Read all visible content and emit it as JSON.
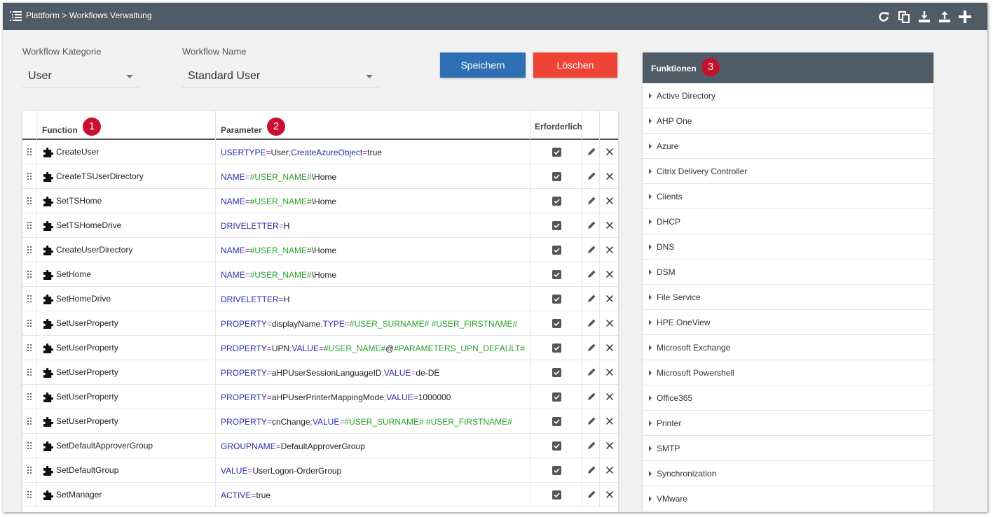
{
  "header": {
    "breadcrumb": "Plattform > Workflows Verwaltung",
    "toolbar_icons": [
      "refresh-icon",
      "copy-icon",
      "download-icon",
      "upload-icon",
      "plus-icon"
    ]
  },
  "form": {
    "category_label": "Workflow Kategorie",
    "category_value": "User",
    "name_label": "Workflow Name",
    "name_value": "Standard User"
  },
  "buttons": {
    "save": "Speichern",
    "delete": "Löschen"
  },
  "table": {
    "columns": {
      "function": "Function",
      "function_badge": "1",
      "parameter": "Parameter",
      "parameter_badge": "2",
      "required": "Erforderlich"
    },
    "rows": [
      {
        "function": "CreateUser",
        "param": [
          [
            "k",
            "USERTYPE"
          ],
          [
            "eq",
            "="
          ],
          [
            "v",
            "User"
          ],
          [
            "sc",
            ";"
          ],
          [
            "k",
            "CreateAzureObject"
          ],
          [
            "eq",
            "="
          ],
          [
            "v",
            "true"
          ]
        ],
        "required": true
      },
      {
        "function": "CreateTSUserDirectory",
        "param": [
          [
            "k",
            "NAME"
          ],
          [
            "eq",
            "="
          ],
          [
            "vg",
            "#USER_NAME#"
          ],
          [
            "v",
            "\\Home"
          ]
        ],
        "required": true
      },
      {
        "function": "SetTSHome",
        "param": [
          [
            "k",
            "NAME"
          ],
          [
            "eq",
            "="
          ],
          [
            "vg",
            "#USER_NAME#"
          ],
          [
            "v",
            "\\Home"
          ]
        ],
        "required": true
      },
      {
        "function": "SetTSHomeDrive",
        "param": [
          [
            "k",
            "DRIVELETTER"
          ],
          [
            "eq",
            "="
          ],
          [
            "v",
            "H"
          ]
        ],
        "required": true
      },
      {
        "function": "CreateUserDirectory",
        "param": [
          [
            "k",
            "NAME"
          ],
          [
            "eq",
            "="
          ],
          [
            "vg",
            "#USER_NAME#"
          ],
          [
            "v",
            "\\Home"
          ]
        ],
        "required": true
      },
      {
        "function": "SetHome",
        "param": [
          [
            "k",
            "NAME"
          ],
          [
            "eq",
            "="
          ],
          [
            "vg",
            "#USER_NAME#"
          ],
          [
            "v",
            "\\Home"
          ]
        ],
        "required": true
      },
      {
        "function": "SetHomeDrive",
        "param": [
          [
            "k",
            "DRIVELETTER"
          ],
          [
            "eq",
            "="
          ],
          [
            "v",
            "H"
          ]
        ],
        "required": true
      },
      {
        "function": "SetUserProperty",
        "param": [
          [
            "k",
            "PROPERTY"
          ],
          [
            "eq",
            "="
          ],
          [
            "v",
            "displayName"
          ],
          [
            "sc",
            ";"
          ],
          [
            "k",
            "TYPE"
          ],
          [
            "eq",
            "="
          ],
          [
            "vg",
            "#USER_SURNAME# #USER_FIRSTNAME#"
          ]
        ],
        "required": true
      },
      {
        "function": "SetUserProperty",
        "param": [
          [
            "k",
            "PROPERTY"
          ],
          [
            "eq",
            "="
          ],
          [
            "v",
            "UPN"
          ],
          [
            "sc",
            ";"
          ],
          [
            "k",
            "VALUE"
          ],
          [
            "eq",
            "="
          ],
          [
            "vg",
            "#USER_NAME#"
          ],
          [
            "v",
            "@"
          ],
          [
            "vg",
            "#PARAMETERS_UPN_DEFAULT#"
          ]
        ],
        "required": true
      },
      {
        "function": "SetUserProperty",
        "param": [
          [
            "k",
            "PROPERTY"
          ],
          [
            "eq",
            "="
          ],
          [
            "v",
            "aHPUserSessionLanguageID"
          ],
          [
            "sc",
            ";"
          ],
          [
            "k",
            "VALUE"
          ],
          [
            "eq",
            "="
          ],
          [
            "v",
            "de-DE"
          ]
        ],
        "required": true
      },
      {
        "function": "SetUserProperty",
        "param": [
          [
            "k",
            "PROPERTY"
          ],
          [
            "eq",
            "="
          ],
          [
            "v",
            "aHPUserPrinterMappingMode"
          ],
          [
            "sc",
            ";"
          ],
          [
            "k",
            "VALUE"
          ],
          [
            "eq",
            "="
          ],
          [
            "v",
            "1000000"
          ]
        ],
        "required": true
      },
      {
        "function": "SetUserProperty",
        "param": [
          [
            "k",
            "PROPERTY"
          ],
          [
            "eq",
            "="
          ],
          [
            "v",
            "cnChange"
          ],
          [
            "sc",
            ";"
          ],
          [
            "k",
            "VALUE"
          ],
          [
            "eq",
            "="
          ],
          [
            "vg",
            "#USER_SURNAME# #USER_FIRSTNAME#"
          ]
        ],
        "required": true
      },
      {
        "function": "SetDefaultApproverGroup",
        "param": [
          [
            "k",
            "GROUPNAME"
          ],
          [
            "eq",
            "="
          ],
          [
            "v",
            "DefaultApproverGroup"
          ]
        ],
        "required": true
      },
      {
        "function": "SetDefaultGroup",
        "param": [
          [
            "k",
            "VALUE"
          ],
          [
            "eq",
            "="
          ],
          [
            "v",
            "UserLogon-OrderGroup"
          ]
        ],
        "required": true
      },
      {
        "function": "SetManager",
        "param": [
          [
            "k",
            "ACTIVE"
          ],
          [
            "eq",
            "="
          ],
          [
            "v",
            "true"
          ]
        ],
        "required": true
      }
    ]
  },
  "functions_panel": {
    "title": "Funktionen",
    "badge": "3",
    "items": [
      "Active Directory",
      "AHP One",
      "Azure",
      "Citrix Delivery Controller",
      "Clients",
      "DHCP",
      "DNS",
      "DSM",
      "File Service",
      "HPE OneView",
      "Microsoft Exchange",
      "Microsoft Powershell",
      "Office365",
      "Printer",
      "SMTP",
      "Synchronization",
      "VMware"
    ]
  },
  "colors": {
    "topbar": "#4f5b66",
    "save_button": "#2f6fb3",
    "delete_button": "#ef4336",
    "badge": "#c8102e",
    "param_key": "#2b2ba8",
    "param_equals": "#b04bd8",
    "param_variable": "#28a028"
  }
}
